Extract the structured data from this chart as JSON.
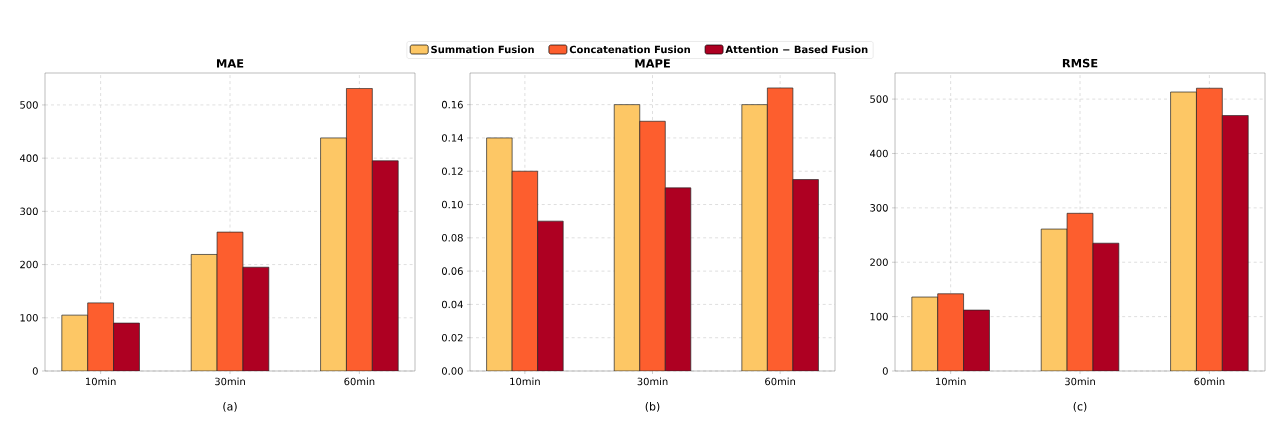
{
  "chart_data": [
    {
      "type": "bar",
      "title": "MAE",
      "xlabel": "(a)",
      "categories": [
        "10min",
        "30min",
        "60min"
      ],
      "legend": "top",
      "grid": true,
      "ylim": [
        0,
        560
      ],
      "yticks": [
        0,
        100,
        200,
        300,
        400,
        500
      ],
      "series": [
        {
          "name": "Summation Fusion",
          "color": "#fdc765",
          "values": [
            105,
            219,
            438
          ]
        },
        {
          "name": "Concatenation Fusion",
          "color": "#fd5e2e",
          "values": [
            128,
            261,
            531
          ]
        },
        {
          "name": "Attention − Based Fusion",
          "color": "#ae0022",
          "values": [
            90,
            195,
            395
          ]
        }
      ]
    },
    {
      "type": "bar",
      "title": "MAPE",
      "xlabel": "(b)",
      "categories": [
        "10min",
        "30min",
        "60min"
      ],
      "grid": true,
      "ylim": [
        0,
        0.179
      ],
      "yticks": [
        {
          "value": 0,
          "label": "0.00"
        },
        {
          "value": 0.02,
          "label": "0.02"
        },
        {
          "value": 0.04,
          "label": "0.04"
        },
        {
          "value": 0.06,
          "label": "0.06"
        },
        {
          "value": 0.08,
          "label": "0.08"
        },
        {
          "value": 0.1,
          "label": "0.10"
        },
        {
          "value": 0.12,
          "label": "0.12"
        },
        {
          "value": 0.14,
          "label": "0.14"
        },
        {
          "value": 0.16,
          "label": "0.16"
        }
      ],
      "series": [
        {
          "color": "#fdc765",
          "values": [
            0.14,
            0.16,
            0.16
          ]
        },
        {
          "color": "#fd5e2e",
          "values": [
            0.12,
            0.15,
            0.17
          ]
        },
        {
          "color": "#ae0022",
          "values": [
            0.09,
            0.11,
            0.115
          ]
        }
      ]
    },
    {
      "type": "bar",
      "title": "RMSE",
      "xlabel": "(c)",
      "categories": [
        "10min",
        "30min",
        "60min"
      ],
      "grid": true,
      "ylim": [
        0,
        548
      ],
      "yticks": [
        0,
        100,
        200,
        300,
        400,
        500
      ],
      "series": [
        {
          "color": "#fdc765",
          "values": [
            136,
            261,
            513
          ]
        },
        {
          "color": "#fd5e2e",
          "values": [
            142,
            290,
            520
          ]
        },
        {
          "color": "#ae0022",
          "values": [
            112,
            235,
            470
          ]
        }
      ]
    }
  ]
}
